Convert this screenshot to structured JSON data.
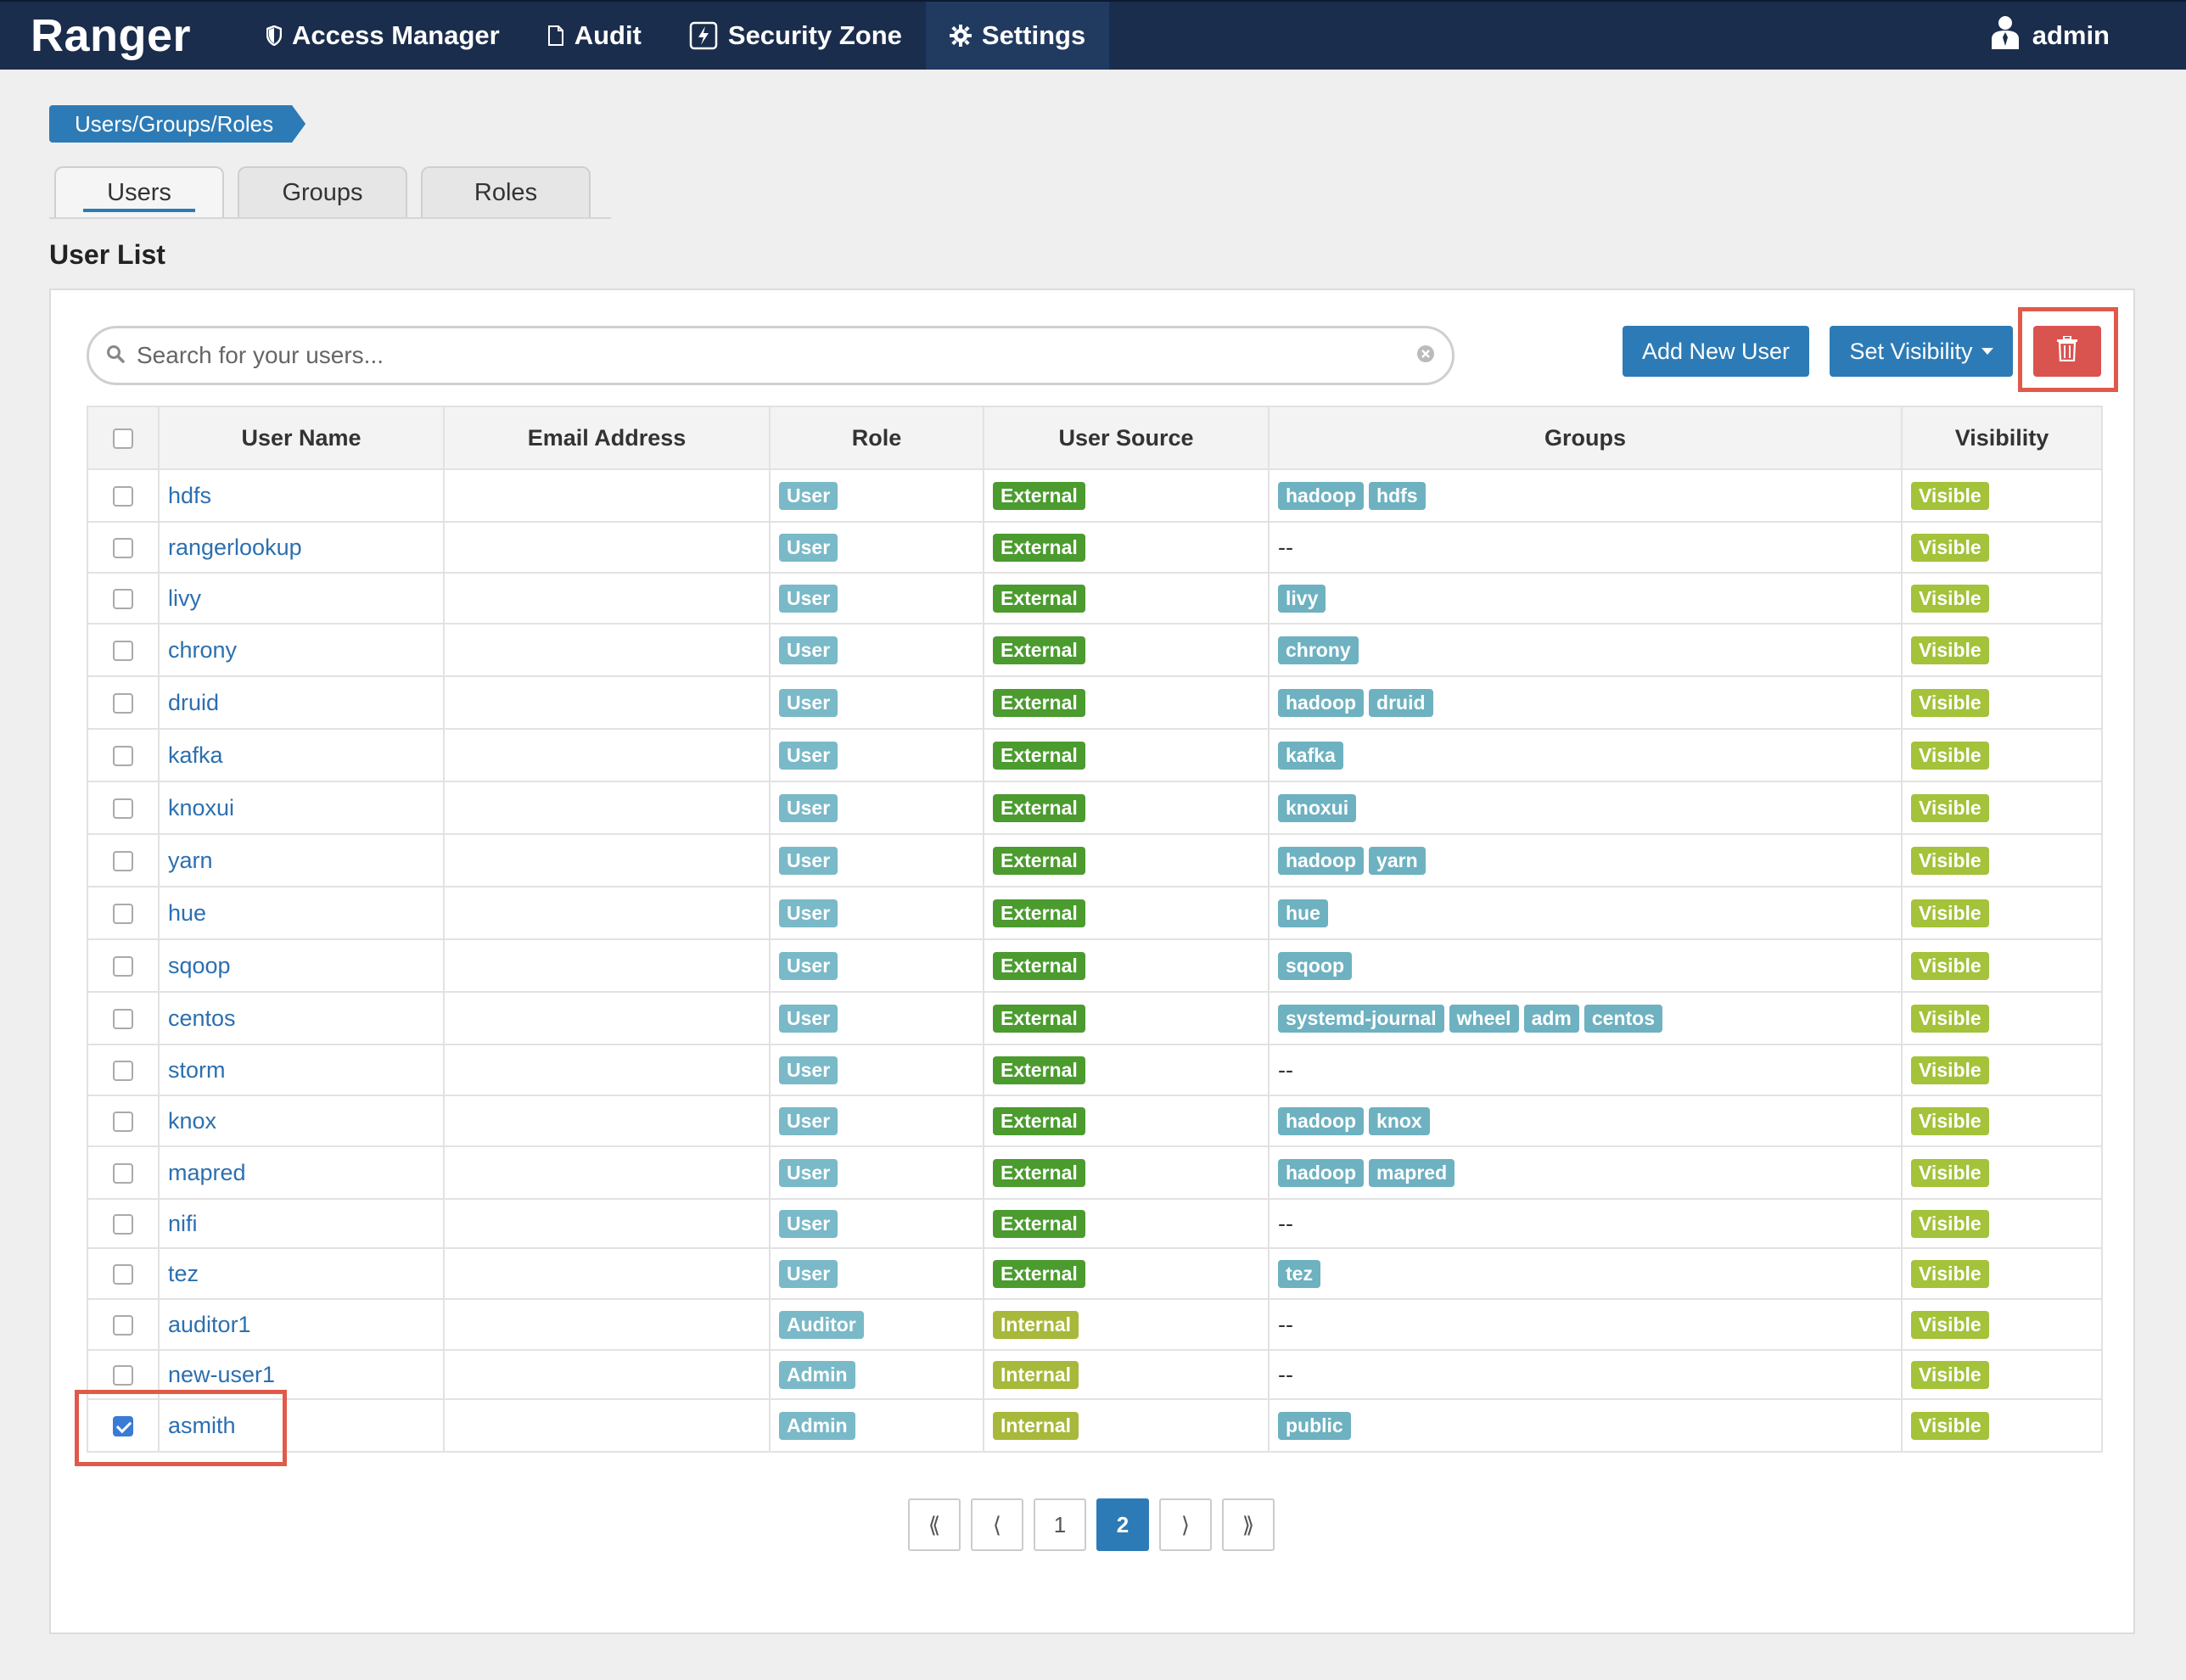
{
  "nav": {
    "brand": "Ranger",
    "items": [
      {
        "label": "Access Manager",
        "icon": "shield-icon"
      },
      {
        "label": "Audit",
        "icon": "file-icon"
      },
      {
        "label": "Security Zone",
        "icon": "bolt-icon"
      },
      {
        "label": "Settings",
        "icon": "gear-icon"
      }
    ],
    "user": "admin"
  },
  "breadcrumb": "Users/Groups/Roles",
  "tabs": [
    "Users",
    "Groups",
    "Roles"
  ],
  "page_title": "User List",
  "search": {
    "placeholder": "Search for your users..."
  },
  "buttons": {
    "add_user": "Add New User",
    "set_visibility": "Set Visibility"
  },
  "table": {
    "headers": [
      "User Name",
      "Email Address",
      "Role",
      "User Source",
      "Groups",
      "Visibility"
    ],
    "rows": [
      {
        "name": "hdfs",
        "email": "",
        "role": "User",
        "source": "External",
        "groups": [
          "hadoop",
          "hdfs"
        ],
        "visibility": "Visible",
        "checked": false
      },
      {
        "name": "rangerlookup",
        "email": "",
        "role": "User",
        "source": "External",
        "groups": [],
        "visibility": "Visible",
        "checked": false
      },
      {
        "name": "livy",
        "email": "",
        "role": "User",
        "source": "External",
        "groups": [
          "livy"
        ],
        "visibility": "Visible",
        "checked": false
      },
      {
        "name": "chrony",
        "email": "",
        "role": "User",
        "source": "External",
        "groups": [
          "chrony"
        ],
        "visibility": "Visible",
        "checked": false
      },
      {
        "name": "druid",
        "email": "",
        "role": "User",
        "source": "External",
        "groups": [
          "hadoop",
          "druid"
        ],
        "visibility": "Visible",
        "checked": false
      },
      {
        "name": "kafka",
        "email": "",
        "role": "User",
        "source": "External",
        "groups": [
          "kafka"
        ],
        "visibility": "Visible",
        "checked": false
      },
      {
        "name": "knoxui",
        "email": "",
        "role": "User",
        "source": "External",
        "groups": [
          "knoxui"
        ],
        "visibility": "Visible",
        "checked": false
      },
      {
        "name": "yarn",
        "email": "",
        "role": "User",
        "source": "External",
        "groups": [
          "hadoop",
          "yarn"
        ],
        "visibility": "Visible",
        "checked": false
      },
      {
        "name": "hue",
        "email": "",
        "role": "User",
        "source": "External",
        "groups": [
          "hue"
        ],
        "visibility": "Visible",
        "checked": false
      },
      {
        "name": "sqoop",
        "email": "",
        "role": "User",
        "source": "External",
        "groups": [
          "sqoop"
        ],
        "visibility": "Visible",
        "checked": false
      },
      {
        "name": "centos",
        "email": "",
        "role": "User",
        "source": "External",
        "groups": [
          "systemd-journal",
          "wheel",
          "adm",
          "centos"
        ],
        "visibility": "Visible",
        "checked": false
      },
      {
        "name": "storm",
        "email": "",
        "role": "User",
        "source": "External",
        "groups": [],
        "visibility": "Visible",
        "checked": false
      },
      {
        "name": "knox",
        "email": "",
        "role": "User",
        "source": "External",
        "groups": [
          "hadoop",
          "knox"
        ],
        "visibility": "Visible",
        "checked": false
      },
      {
        "name": "mapred",
        "email": "",
        "role": "User",
        "source": "External",
        "groups": [
          "hadoop",
          "mapred"
        ],
        "visibility": "Visible",
        "checked": false
      },
      {
        "name": "nifi",
        "email": "",
        "role": "User",
        "source": "External",
        "groups": [],
        "visibility": "Visible",
        "checked": false
      },
      {
        "name": "tez",
        "email": "",
        "role": "User",
        "source": "External",
        "groups": [
          "tez"
        ],
        "visibility": "Visible",
        "checked": false
      },
      {
        "name": "auditor1",
        "email": "",
        "role": "Auditor",
        "source": "Internal",
        "groups": [],
        "visibility": "Visible",
        "checked": false
      },
      {
        "name": "new-user1",
        "email": "",
        "role": "Admin",
        "source": "Internal",
        "groups": [],
        "visibility": "Visible",
        "checked": false
      },
      {
        "name": "asmith",
        "email": "",
        "role": "Admin",
        "source": "Internal",
        "groups": [
          "public"
        ],
        "visibility": "Visible",
        "checked": true
      }
    ],
    "empty_groups": "--"
  },
  "pagination": {
    "first": "⟪",
    "prev": "⟨",
    "pages": [
      "1",
      "2"
    ],
    "current": "2",
    "next": "⟩",
    "last": "⟫"
  },
  "colors": {
    "navbar": "#1b2d4c",
    "primary": "#2d7bb6",
    "danger": "#d9534f",
    "highlight": "#e05a4a"
  }
}
